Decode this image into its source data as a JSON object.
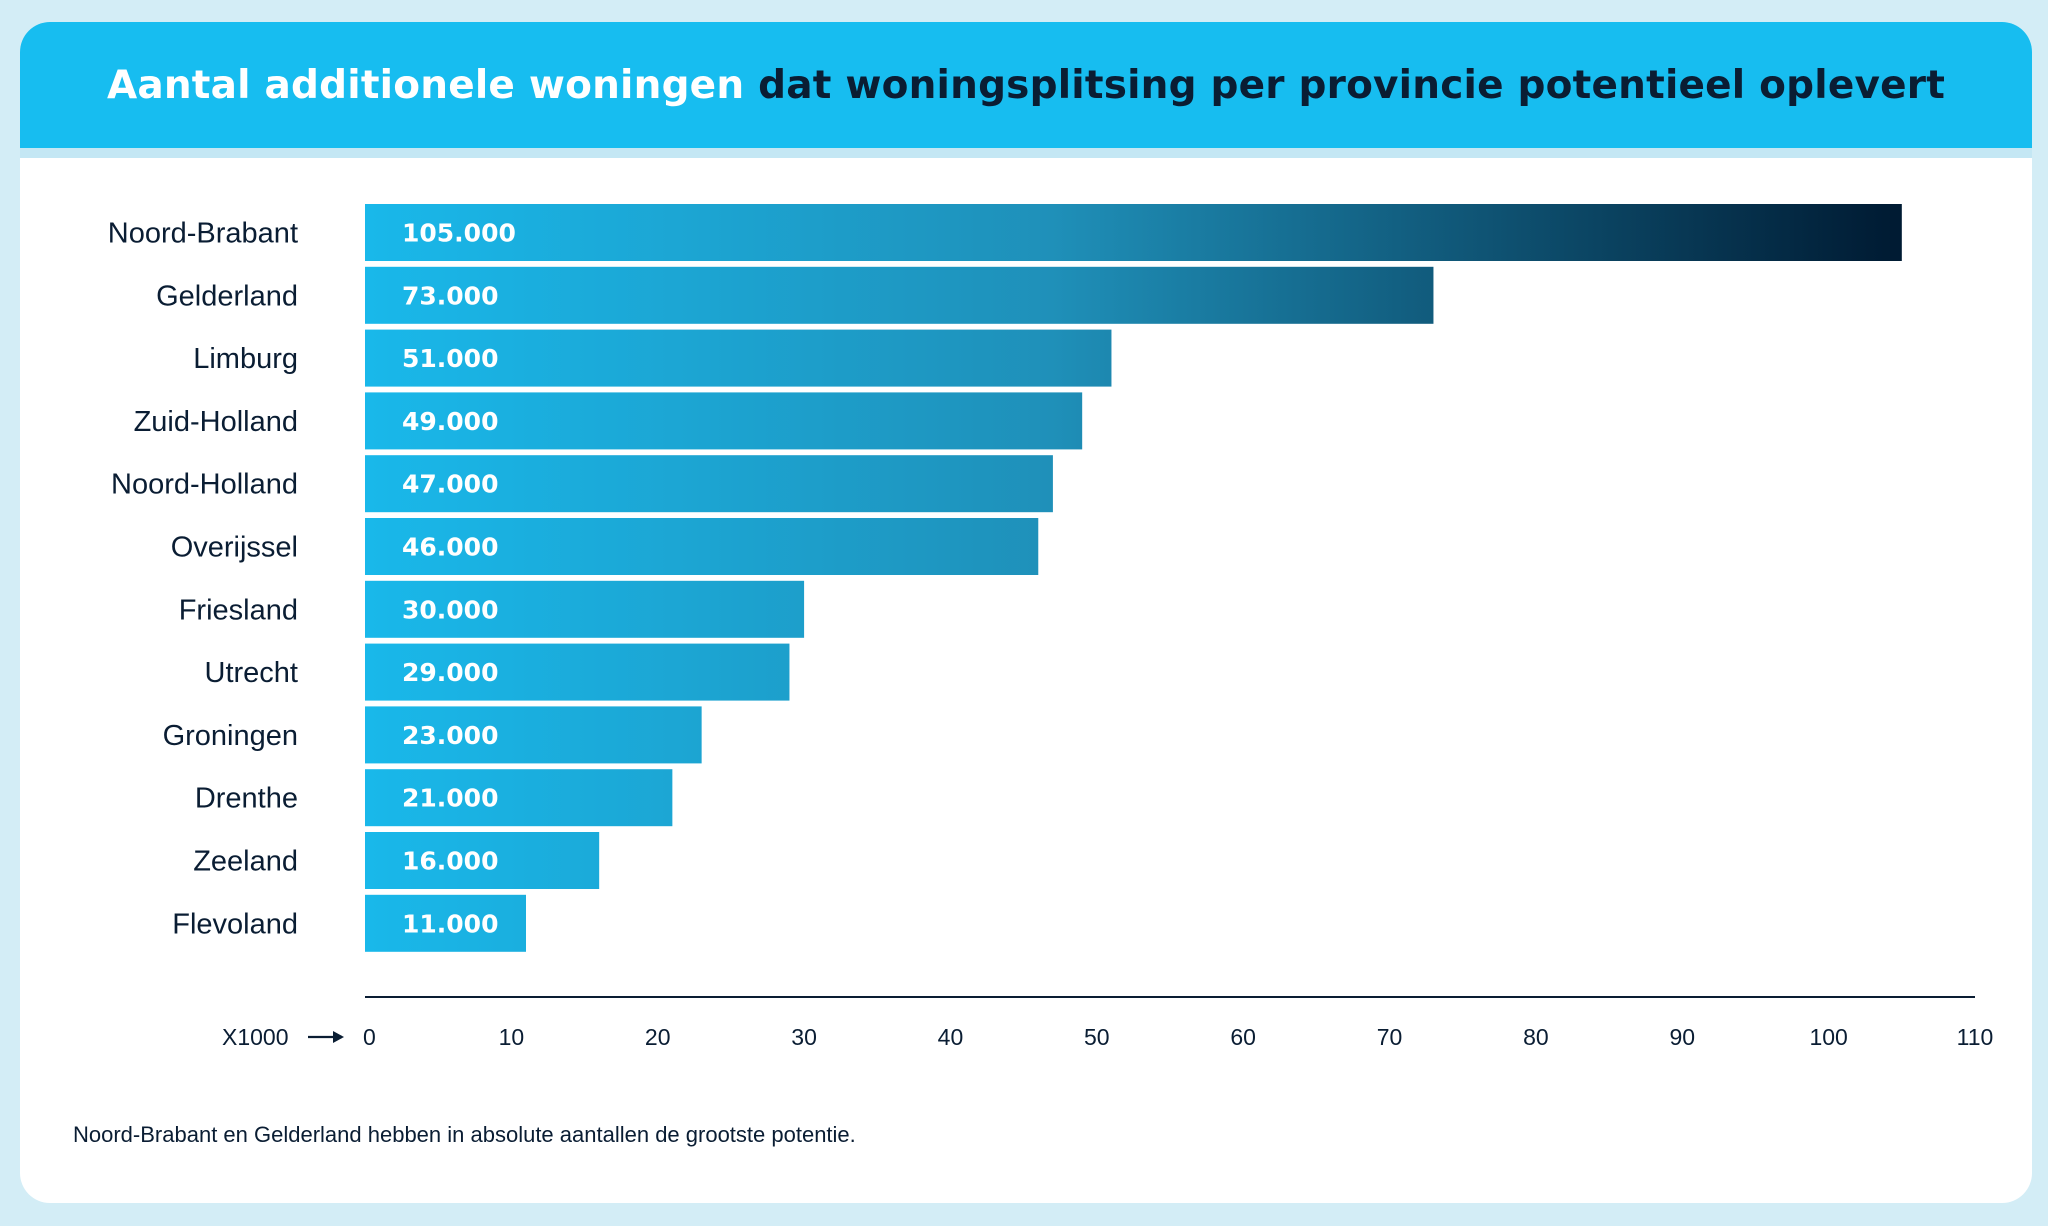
{
  "title": {
    "light": "Aantal additionele woningen",
    "dark": "dat woningsplitsing per provincie potentieel oplevert"
  },
  "footnote": "Noord-Brabant en Gelderland hebben in absolute aantallen de grootste potentie.",
  "colors": {
    "header": "#17bdf0",
    "page_background": "#d3edf6",
    "bar_light": "#19b8ea",
    "bar_dark": "#001b33",
    "text_dark": "#0a1d33"
  },
  "chart_data": {
    "type": "bar",
    "orientation": "horizontal",
    "categories": [
      "Noord-Brabant",
      "Gelderland",
      "Limburg",
      "Zuid-Holland",
      "Noord-Holland",
      "Overijssel",
      "Friesland",
      "Utrecht",
      "Groningen",
      "Drenthe",
      "Zeeland",
      "Flevoland"
    ],
    "values": [
      105000,
      73000,
      51000,
      49000,
      47000,
      46000,
      30000,
      29000,
      23000,
      21000,
      16000,
      11000
    ],
    "value_labels": [
      "105.000",
      "73.000",
      "51.000",
      "49.000",
      "47.000",
      "46.000",
      "30.000",
      "29.000",
      "23.000",
      "21.000",
      "16.000",
      "11.000"
    ],
    "axis_prefix": "X1000",
    "ticks": [
      "0",
      "10",
      "20",
      "30",
      "40",
      "50",
      "60",
      "70",
      "80",
      "90",
      "100",
      "110"
    ],
    "xlim": [
      0,
      110000
    ]
  }
}
